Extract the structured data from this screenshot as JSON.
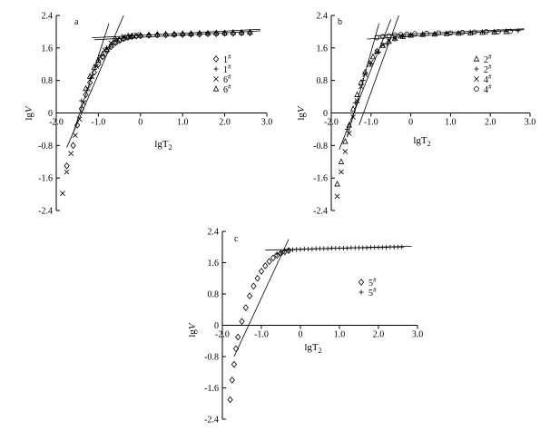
{
  "chart_data": [
    {
      "type": "scatter",
      "panel": "a",
      "xlabel": "lgT2",
      "ylabel": "lgV",
      "xlim": [
        -2.0,
        3.0
      ],
      "ylim": [
        -2.4,
        2.4
      ],
      "xticks": [
        "-2.0",
        "-1.0",
        "0",
        "1.0",
        "2.0",
        "3.0"
      ],
      "yticks": [
        "2.4",
        "1.6",
        "0.8",
        "0",
        "-0.8",
        "-1.6",
        "-2.4"
      ],
      "series": [
        {
          "name": "1#",
          "marker": "diamond",
          "x": [
            -1.75,
            -1.6,
            -1.5,
            -1.4,
            -1.3,
            -1.2,
            -1.1,
            -1.0,
            -0.9,
            -0.8,
            -0.7,
            -0.6,
            -0.5,
            -0.4,
            -0.3,
            -0.2,
            -0.1,
            0.0,
            0.2,
            0.4,
            0.6,
            0.8,
            1.0,
            1.2,
            1.4,
            1.6,
            1.8,
            2.0,
            2.2,
            2.4,
            2.6
          ],
          "y": [
            -1.3,
            -0.8,
            -0.3,
            0.1,
            0.45,
            0.75,
            1.0,
            1.2,
            1.38,
            1.52,
            1.63,
            1.72,
            1.78,
            1.83,
            1.86,
            1.88,
            1.89,
            1.9,
            1.91,
            1.92,
            1.92,
            1.93,
            1.93,
            1.94,
            1.94,
            1.95,
            1.95,
            1.96,
            1.96,
            1.97,
            1.97
          ]
        },
        {
          "name": "1#",
          "marker": "plus",
          "x": [
            -1.4,
            -1.2,
            -1.0,
            -0.8,
            -0.6,
            -0.4,
            -0.2,
            0.0,
            0.2,
            0.4,
            0.6,
            0.8,
            1.0,
            1.2,
            1.4,
            1.6,
            1.8,
            2.0,
            2.2,
            2.4,
            2.6
          ],
          "y": [
            0.3,
            0.85,
            1.3,
            1.6,
            1.78,
            1.86,
            1.9,
            1.92,
            1.93,
            1.94,
            1.95,
            1.95,
            1.96,
            1.96,
            1.97,
            1.97,
            1.98,
            1.98,
            1.99,
            1.99,
            2.0
          ]
        },
        {
          "name": "6#",
          "marker": "cross",
          "x": [
            -1.85,
            -1.75,
            -1.65,
            -1.55,
            -1.45,
            -1.35,
            -1.25,
            -1.15,
            -1.05,
            -0.95,
            -0.85,
            -0.7,
            -0.55,
            -0.4,
            -0.25,
            -0.1
          ],
          "y": [
            -1.98,
            -1.45,
            -1.0,
            -0.55,
            -0.15,
            0.25,
            0.6,
            0.9,
            1.15,
            1.38,
            1.55,
            1.72,
            1.82,
            1.88,
            1.91,
            1.92
          ]
        },
        {
          "name": "6#",
          "marker": "triangle",
          "x": [
            -1.3,
            -1.2,
            -1.1,
            -1.0,
            -0.9,
            -0.8,
            -0.7,
            -0.6,
            -0.5,
            -0.4,
            -0.3,
            -0.2,
            0.0,
            0.2,
            0.4,
            0.6,
            0.8,
            1.0,
            1.2,
            1.4,
            1.6,
            1.8,
            2.0,
            2.2,
            2.4,
            2.6
          ],
          "y": [
            0.6,
            0.9,
            1.12,
            1.3,
            1.45,
            1.57,
            1.67,
            1.75,
            1.8,
            1.84,
            1.87,
            1.89,
            1.91,
            1.92,
            1.93,
            1.94,
            1.94,
            1.95,
            1.95,
            1.96,
            1.96,
            1.97,
            1.97,
            1.98,
            1.98,
            1.99
          ]
        }
      ],
      "fit_lines": [
        {
          "x": [
            -1.75,
            -0.4
          ],
          "y": [
            -0.85,
            2.4
          ]
        },
        {
          "x": [
            -1.6,
            -0.75
          ],
          "y": [
            -0.5,
            2.2
          ]
        },
        {
          "x": [
            -1.1,
            2.85
          ],
          "y": [
            1.8,
            2.02
          ]
        },
        {
          "x": [
            -1.15,
            2.85
          ],
          "y": [
            1.85,
            2.06
          ]
        }
      ],
      "legend": [
        "1#",
        "1#",
        "6#",
        "6#"
      ],
      "legend_position": "right-middle"
    },
    {
      "type": "scatter",
      "panel": "b",
      "xlabel": "lgT2",
      "ylabel": "lgV",
      "xlim": [
        -2.0,
        3.0
      ],
      "ylim": [
        -2.4,
        2.4
      ],
      "xticks": [
        "-2.0",
        "-1.0",
        "0",
        "1.0",
        "2.0",
        "3.0"
      ],
      "yticks": [
        "2.4",
        "1.6",
        "0.8",
        "0",
        "-0.8",
        "-1.6",
        "-2.4"
      ],
      "series": [
        {
          "name": "2#",
          "marker": "triangle",
          "x": [
            -1.85,
            -1.75,
            -1.65,
            -1.55,
            -1.45,
            -1.35,
            -1.25,
            -1.15,
            -1.05,
            -0.95,
            -0.85,
            -0.7,
            -0.55,
            -0.4,
            -0.2,
            0.0,
            0.3,
            0.6,
            0.9,
            1.2,
            1.5,
            1.8,
            2.1,
            2.4
          ],
          "y": [
            -1.75,
            -1.2,
            -0.7,
            -0.3,
            0.1,
            0.45,
            0.75,
            1.0,
            1.2,
            1.38,
            1.52,
            1.66,
            1.76,
            1.83,
            1.88,
            1.91,
            1.93,
            1.94,
            1.95,
            1.96,
            1.97,
            1.98,
            1.99,
            2.0
          ]
        },
        {
          "name": "2#",
          "marker": "plus",
          "x": [
            -1.6,
            -1.4,
            -1.2,
            -1.0,
            -0.8,
            -0.6,
            -0.4,
            -0.2,
            0.0,
            0.3,
            0.6,
            0.9,
            1.2,
            1.5,
            1.8,
            2.1,
            2.4,
            2.7
          ],
          "y": [
            -0.4,
            0.25,
            0.8,
            1.2,
            1.5,
            1.7,
            1.82,
            1.88,
            1.91,
            1.93,
            1.95,
            1.96,
            1.97,
            1.98,
            1.99,
            2.0,
            2.01,
            2.02
          ]
        },
        {
          "name": "4#",
          "marker": "cross",
          "x": [
            -1.85,
            -1.75,
            -1.65,
            -1.55,
            -1.45,
            -1.35,
            -1.25,
            -1.15,
            -1.0,
            -0.85,
            -0.7,
            -0.55,
            -0.4,
            -0.25
          ],
          "y": [
            -2.05,
            -1.45,
            -0.95,
            -0.5,
            -0.1,
            0.3,
            0.65,
            0.95,
            1.25,
            1.5,
            1.67,
            1.78,
            1.85,
            1.89
          ]
        },
        {
          "name": "4#",
          "marker": "circle",
          "x": [
            -0.85,
            -0.7,
            -0.55,
            -0.4,
            -0.25,
            -0.1,
            0.1,
            0.4,
            0.7,
            1.0,
            1.3,
            1.6,
            1.9,
            2.2,
            2.5
          ],
          "y": [
            1.85,
            1.88,
            1.9,
            1.92,
            1.93,
            1.94,
            1.95,
            1.96,
            1.97,
            1.97,
            1.98,
            1.99,
            2.0,
            2.0,
            2.01
          ]
        }
      ],
      "fit_lines": [
        {
          "x": [
            -1.8,
            -0.5
          ],
          "y": [
            -0.9,
            2.3
          ]
        },
        {
          "x": [
            -1.6,
            -0.8
          ],
          "y": [
            -0.6,
            2.2
          ]
        },
        {
          "x": [
            -1.3,
            -0.3
          ],
          "y": [
            -0.3,
            2.4
          ]
        },
        {
          "x": [
            -1.1,
            2.85
          ],
          "y": [
            1.82,
            2.05
          ]
        },
        {
          "x": [
            -0.9,
            2.85
          ],
          "y": [
            1.9,
            2.07
          ]
        }
      ],
      "legend": [
        "2#",
        "2#",
        "4#",
        "4#"
      ],
      "legend_position": "right-middle"
    },
    {
      "type": "scatter",
      "panel": "c",
      "xlabel": "lgT2",
      "ylabel": "lgV",
      "xlim": [
        -2.0,
        3.0
      ],
      "ylim": [
        -2.4,
        2.4
      ],
      "xticks": [
        "-2.0",
        "-1.0",
        "0",
        "1.0",
        "2.0",
        "3.0"
      ],
      "yticks": [
        "2.4",
        "1.6",
        "0.8",
        "0",
        "-0.8",
        "-1.6",
        "-2.4"
      ],
      "series": [
        {
          "name": "5#",
          "marker": "diamond",
          "x": [
            -1.8,
            -1.75,
            -1.7,
            -1.65,
            -1.6,
            -1.5,
            -1.4,
            -1.3,
            -1.2,
            -1.1,
            -1.0,
            -0.9,
            -0.8,
            -0.7,
            -0.6,
            -0.5,
            -0.4,
            -0.3
          ],
          "y": [
            -1.9,
            -1.4,
            -1.0,
            -0.6,
            -0.3,
            0.1,
            0.45,
            0.75,
            1.0,
            1.2,
            1.38,
            1.52,
            1.63,
            1.72,
            1.79,
            1.84,
            1.88,
            1.91
          ]
        },
        {
          "name": "5#",
          "marker": "plus",
          "x": [
            -0.6,
            -0.5,
            -0.4,
            -0.3,
            -0.2,
            -0.1,
            0.0,
            0.1,
            0.2,
            0.3,
            0.4,
            0.5,
            0.6,
            0.7,
            0.8,
            0.9,
            1.0,
            1.1,
            1.2,
            1.3,
            1.4,
            1.5,
            1.6,
            1.7,
            1.8,
            1.9,
            2.0,
            2.1,
            2.2,
            2.3,
            2.4,
            2.5,
            2.6
          ],
          "y": [
            1.82,
            1.87,
            1.9,
            1.92,
            1.93,
            1.94,
            1.94,
            1.95,
            1.95,
            1.95,
            1.96,
            1.96,
            1.96,
            1.96,
            1.97,
            1.97,
            1.97,
            1.97,
            1.97,
            1.98,
            1.98,
            1.98,
            1.98,
            1.98,
            1.99,
            1.99,
            1.99,
            1.99,
            1.99,
            2.0,
            2.0,
            2.0,
            2.0
          ]
        }
      ],
      "fit_lines": [
        {
          "x": [
            -1.7,
            -0.3
          ],
          "y": [
            -0.8,
            2.2
          ]
        },
        {
          "x": [
            -0.9,
            2.85
          ],
          "y": [
            1.92,
            2.02
          ]
        }
      ],
      "legend": [
        "5#",
        "5#"
      ],
      "legend_position": "right-middle"
    }
  ]
}
